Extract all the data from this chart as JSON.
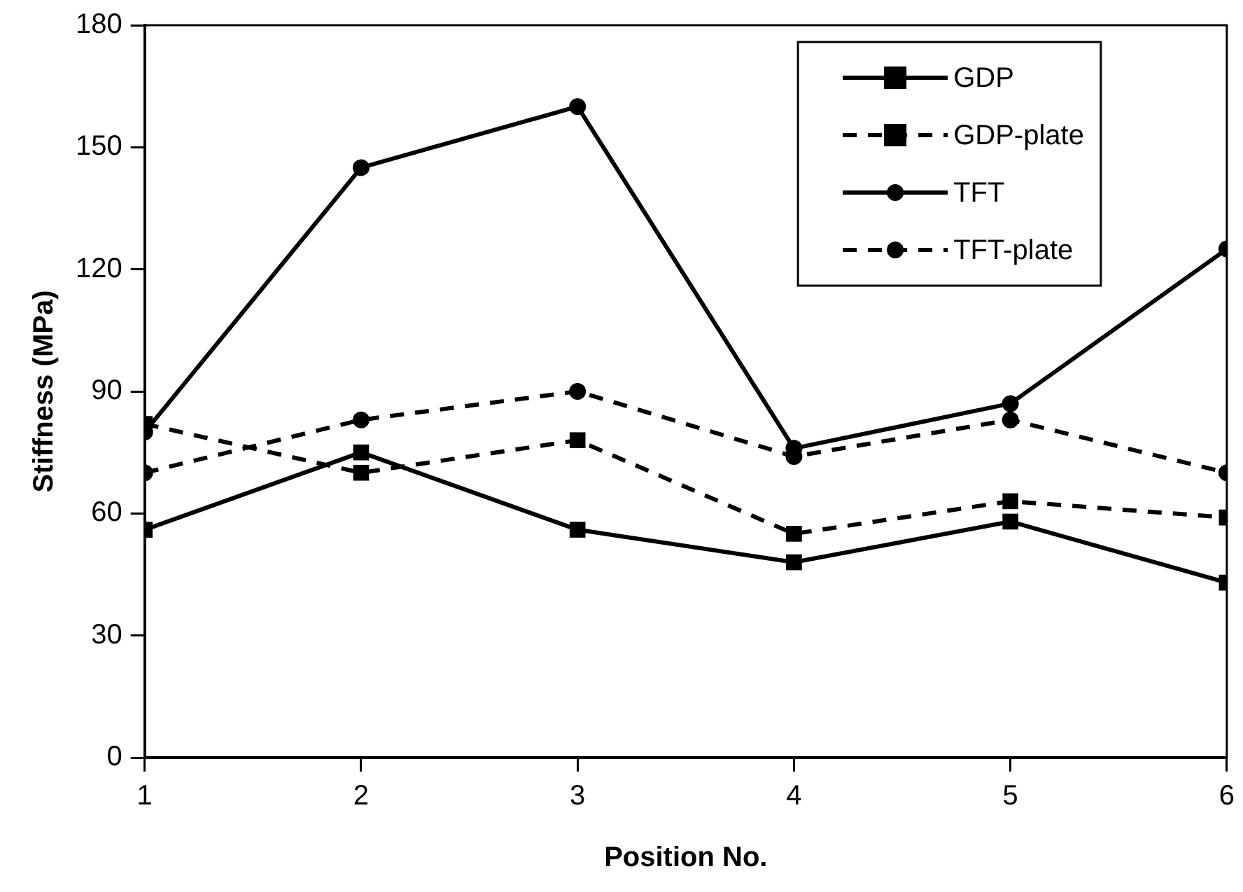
{
  "chart_data": {
    "type": "line",
    "xlabel": "Position No.",
    "ylabel": "Stiffness (MPa)",
    "x": [
      1,
      2,
      3,
      4,
      5,
      6
    ],
    "xlim": [
      1,
      6
    ],
    "xticks": [
      1,
      2,
      3,
      4,
      5,
      6
    ],
    "ylim": [
      0,
      180
    ],
    "yticks": [
      0,
      30,
      60,
      90,
      120,
      150,
      180
    ],
    "grid": false,
    "legend": "top right",
    "series": [
      {
        "name": "GDP",
        "color": "#000000",
        "marker": "square",
        "line_style": "solid",
        "values": [
          56,
          75,
          56,
          48,
          58,
          43
        ]
      },
      {
        "name": "GDP-plate",
        "color": "#000000",
        "marker": "square",
        "line_style": "dashed",
        "values": [
          82,
          70,
          78,
          55,
          63,
          59
        ]
      },
      {
        "name": "TFT",
        "color": "#000000",
        "marker": "circle",
        "line_style": "solid",
        "values": [
          80,
          145,
          160,
          76,
          87,
          125
        ]
      },
      {
        "name": "TFT-plate",
        "color": "#000000",
        "marker": "circle",
        "line_style": "dashed",
        "values": [
          70,
          83,
          90,
          74,
          83,
          70
        ]
      }
    ]
  }
}
